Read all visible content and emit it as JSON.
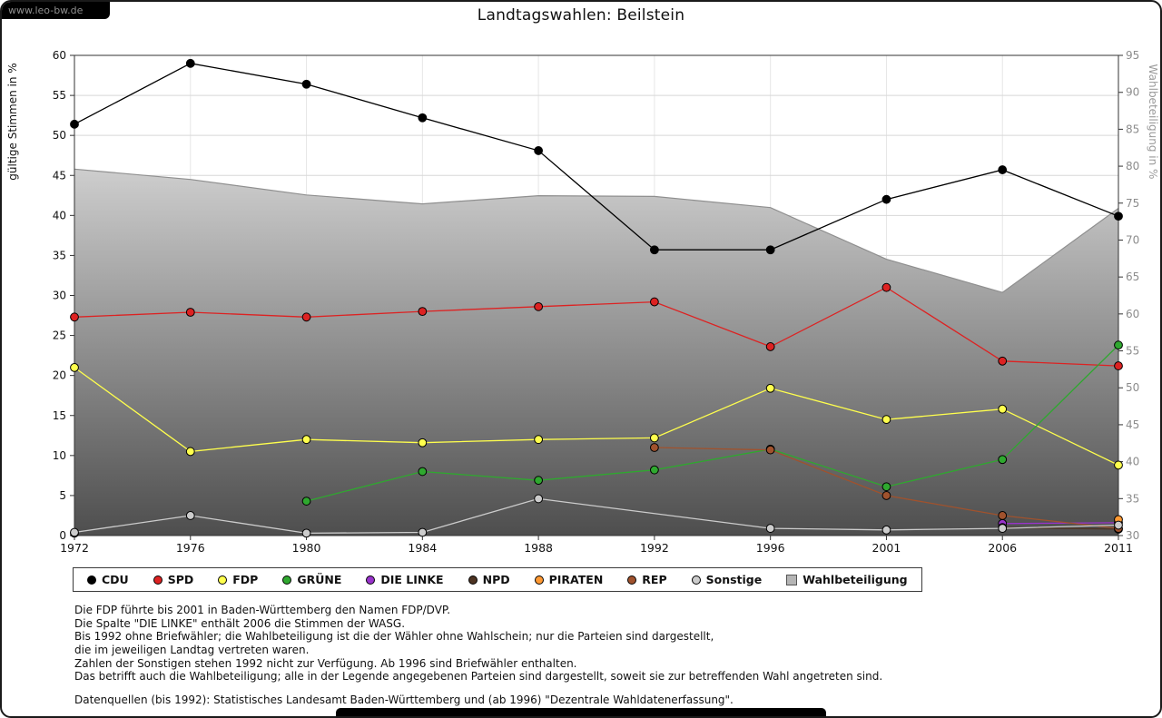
{
  "watermark": "www.leo-bw.de",
  "chart_data": {
    "type": "line",
    "title": "Landtagswahlen: Beilstein",
    "categories": [
      "1972",
      "1976",
      "1980",
      "1984",
      "1988",
      "1992",
      "1996",
      "2001",
      "2006",
      "2011"
    ],
    "y_left": {
      "label": "gültige Stimmen in %",
      "min": 0,
      "max": 60,
      "tick_step": 5
    },
    "y_right": {
      "label": "Wahlbeteiligung in %",
      "min": 30,
      "max": 95,
      "tick_step": 5
    },
    "grid": true,
    "legend_position": "bottom",
    "series": [
      {
        "name": "CDU",
        "color": "#000000",
        "axis": "left",
        "values": [
          51.4,
          59.0,
          56.4,
          52.2,
          48.1,
          35.7,
          35.7,
          42.0,
          45.7,
          39.9
        ]
      },
      {
        "name": "SPD",
        "color": "#dd2222",
        "axis": "left",
        "values": [
          27.3,
          27.9,
          27.3,
          28.0,
          28.6,
          29.2,
          23.6,
          31.0,
          21.8,
          21.2
        ]
      },
      {
        "name": "FDP",
        "color": "#ffff4d",
        "axis": "left",
        "values": [
          21.0,
          10.5,
          12.0,
          11.6,
          12.0,
          12.2,
          18.4,
          14.5,
          15.8,
          8.8
        ]
      },
      {
        "name": "GRÜNE",
        "color": "#2fa82f",
        "axis": "left",
        "values": [
          null,
          null,
          4.3,
          8.0,
          6.9,
          8.2,
          10.8,
          6.1,
          9.5,
          23.8
        ]
      },
      {
        "name": "DIE LINKE",
        "color": "#9933cc",
        "axis": "left",
        "values": [
          null,
          null,
          null,
          null,
          null,
          null,
          null,
          null,
          1.5,
          1.6
        ]
      },
      {
        "name": "NPD",
        "color": "#4d3322",
        "axis": "left",
        "values": [
          0.3,
          null,
          null,
          null,
          null,
          null,
          null,
          null,
          1.0,
          0.8
        ]
      },
      {
        "name": "PIRATEN",
        "color": "#ff9933",
        "axis": "left",
        "values": [
          null,
          null,
          null,
          null,
          null,
          null,
          null,
          null,
          null,
          2.0
        ]
      },
      {
        "name": "REP",
        "color": "#a0522d",
        "axis": "left",
        "values": [
          null,
          null,
          null,
          null,
          null,
          11.0,
          10.7,
          5.0,
          2.5,
          0.9
        ]
      },
      {
        "name": "Sonstige",
        "color": "#cccccc",
        "axis": "left",
        "connect_gaps": true,
        "values": [
          0.4,
          2.5,
          0.3,
          0.4,
          4.6,
          null,
          0.9,
          0.7,
          0.9,
          1.3
        ]
      },
      {
        "name": "Wahlbeteiligung",
        "color": "#b5b5b5",
        "axis": "right",
        "style": "area",
        "values": [
          79.6,
          78.2,
          76.1,
          74.9,
          76.0,
          75.9,
          74.4,
          67.4,
          62.9,
          74.3
        ]
      }
    ]
  },
  "footnotes": {
    "notes": "Die FDP führte bis 2001 in Baden-Württemberg den Namen FDP/DVP.\nDie Spalte \"DIE LINKE\" enthält 2006 die Stimmen der WASG.\nBis 1992 ohne Briefwähler; die Wahlbeteiligung ist die der Wähler ohne Wahlschein; nur die Parteien sind dargestellt,\ndie im jeweiligen Landtag vertreten waren.\nZahlen der Sonstigen stehen 1992 nicht zur Verfügung. Ab 1996 sind Briefwähler enthalten.\nDas betrifft auch die Wahlbeteiligung; alle in der Legende angegebenen Parteien sind dargestellt, soweit sie zur betreffenden Wahl angetreten sind.",
    "source": "Datenquellen (bis 1992): Statistisches Landesamt Baden-Württemberg und (ab 1996) \"Dezentrale Wahldatenerfassung\"."
  }
}
